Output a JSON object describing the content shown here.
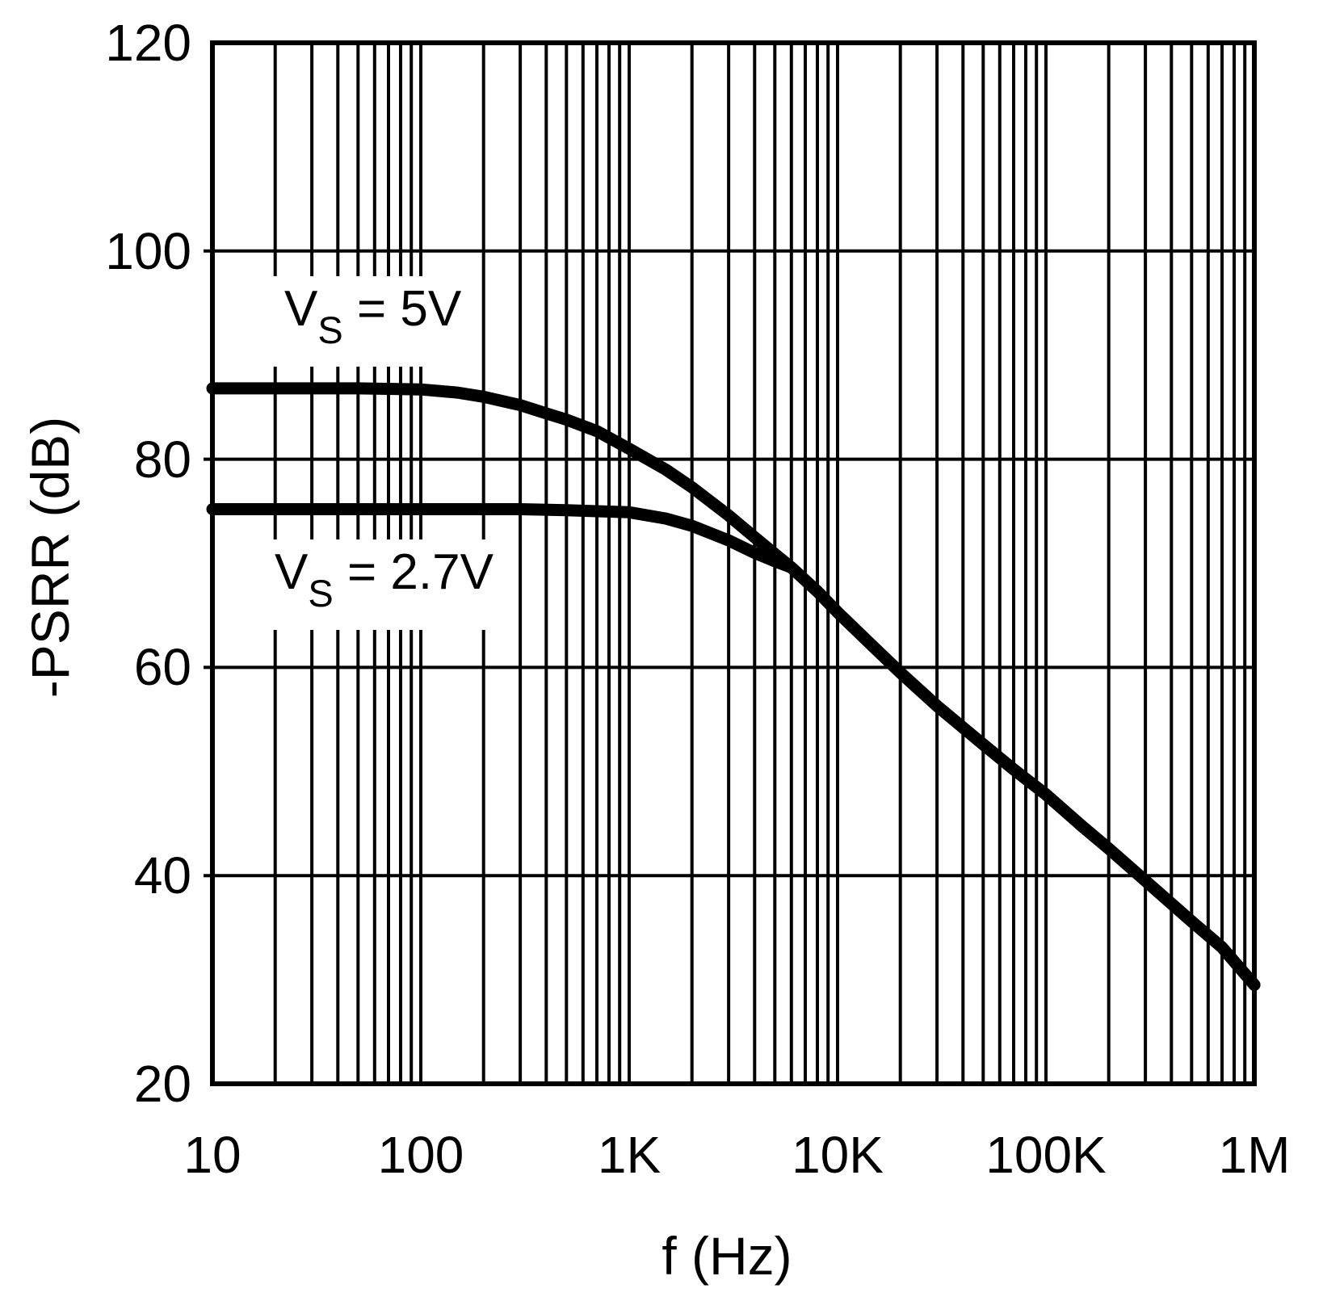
{
  "colors": {
    "foreground": "#000000",
    "background": "#ffffff"
  },
  "chart_data": {
    "type": "line",
    "title": "",
    "xlabel": "f (Hz)",
    "ylabel": "-PSRR (dB)",
    "x_scale": "log",
    "y_scale": "linear",
    "xlim": [
      10,
      1000000
    ],
    "ylim": [
      20,
      120
    ],
    "grid": {
      "x_major": true,
      "x_minor_log_decades": true,
      "y_major": true,
      "y_minor": false
    },
    "x_ticks": [
      {
        "value": 10,
        "label": "10"
      },
      {
        "value": 100,
        "label": "100"
      },
      {
        "value": 1000,
        "label": "1K"
      },
      {
        "value": 10000,
        "label": "10K"
      },
      {
        "value": 100000,
        "label": "100K"
      },
      {
        "value": 1000000,
        "label": "1M"
      }
    ],
    "y_ticks": [
      {
        "value": 120,
        "label": "120"
      },
      {
        "value": 100,
        "label": "100"
      },
      {
        "value": 80,
        "label": "80"
      },
      {
        "value": 60,
        "label": "60"
      },
      {
        "value": 40,
        "label": "40"
      },
      {
        "value": 20,
        "label": "20"
      }
    ],
    "series": [
      {
        "name": "VS = 5V",
        "points": [
          [
            10,
            86.8
          ],
          [
            20,
            86.8
          ],
          [
            50,
            86.8
          ],
          [
            100,
            86.7
          ],
          [
            150,
            86.4
          ],
          [
            200,
            86.0
          ],
          [
            300,
            85.2
          ],
          [
            400,
            84.4
          ],
          [
            500,
            83.8
          ],
          [
            700,
            82.7
          ],
          [
            1000,
            81.0
          ],
          [
            1500,
            79.0
          ],
          [
            2000,
            77.3
          ],
          [
            3000,
            74.6
          ],
          [
            4000,
            72.5
          ],
          [
            5000,
            70.9
          ],
          [
            6000,
            69.6
          ],
          [
            8000,
            67.3
          ],
          [
            10000,
            65.3
          ],
          [
            15000,
            61.9
          ],
          [
            20000,
            59.5
          ],
          [
            30000,
            56.3
          ],
          [
            50000,
            52.6
          ],
          [
            70000,
            50.2
          ],
          [
            100000,
            47.8
          ],
          [
            150000,
            44.7
          ],
          [
            200000,
            42.6
          ],
          [
            300000,
            39.5
          ],
          [
            500000,
            35.6
          ],
          [
            700000,
            33.1
          ],
          [
            1000000,
            29.5
          ]
        ]
      },
      {
        "name": "VS = 2.7V",
        "points": [
          [
            10,
            75.2
          ],
          [
            50,
            75.2
          ],
          [
            100,
            75.2
          ],
          [
            300,
            75.2
          ],
          [
            500,
            75.1
          ],
          [
            700,
            75.0
          ],
          [
            1000,
            74.9
          ],
          [
            1500,
            74.3
          ],
          [
            2000,
            73.6
          ],
          [
            3000,
            72.2
          ],
          [
            4000,
            71.0
          ],
          [
            5000,
            70.2
          ],
          [
            6000,
            69.6
          ],
          [
            8000,
            67.3
          ],
          [
            10000,
            65.3
          ],
          [
            15000,
            61.9
          ],
          [
            20000,
            59.5
          ],
          [
            30000,
            56.3
          ],
          [
            50000,
            52.6
          ],
          [
            70000,
            50.2
          ],
          [
            100000,
            47.8
          ],
          [
            150000,
            44.7
          ],
          [
            200000,
            42.6
          ],
          [
            300000,
            39.5
          ],
          [
            500000,
            35.6
          ],
          [
            700000,
            33.1
          ],
          [
            1000000,
            29.5
          ]
        ]
      }
    ],
    "annotations": [
      {
        "pre": "V",
        "sub": "S",
        "post": " = 5V"
      },
      {
        "pre": "V",
        "sub": "S",
        "post": " = 2.7V"
      }
    ]
  }
}
